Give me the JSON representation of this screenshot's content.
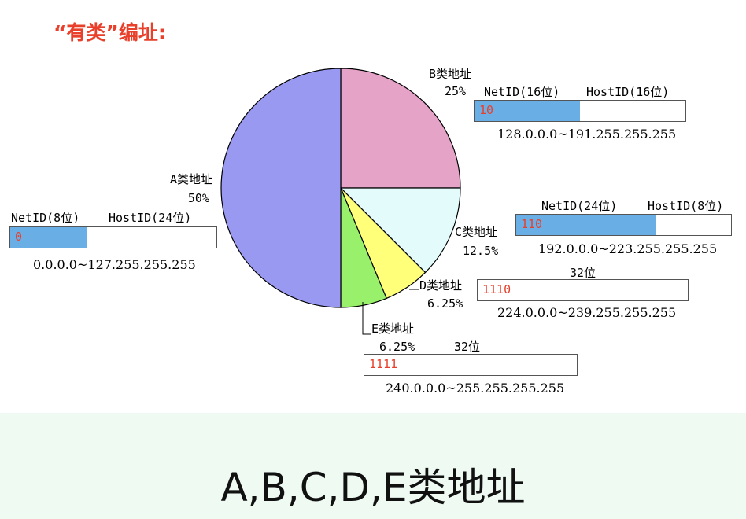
{
  "heading": "“有类”编址:",
  "caption": "A,B,C,D,E类地址",
  "chart_data": {
    "type": "pie",
    "slices": [
      {
        "label": "A类地址",
        "pct_label": "50%",
        "value": 50,
        "color": "#9999f2"
      },
      {
        "label": "B类地址",
        "pct_label": "25%",
        "value": 25,
        "color": "#e6a3c8"
      },
      {
        "label": "C类地址",
        "pct_label": "12.5%",
        "value": 12.5,
        "color": "#e3fbfb"
      },
      {
        "label": "D类地址",
        "pct_label": "6.25%",
        "value": 6.25,
        "color": "#ffff7a"
      },
      {
        "label": "E类地址",
        "pct_label": "6.25%",
        "value": 6.25,
        "color": "#99f06a"
      }
    ]
  },
  "classes": {
    "A": {
      "net": "NetID(8位)",
      "host": "HostID(24位)",
      "prefix": "0",
      "range": "0.0.0.0~127.255.255.255",
      "net_fraction": 0.37
    },
    "B": {
      "net": "NetID(16位)",
      "host": "HostID(16位)",
      "prefix": "10",
      "range": "128.0.0.0~191.255.255.255",
      "net_fraction": 0.5
    },
    "C": {
      "net": "NetID(24位)",
      "host": "HostID(8位)",
      "prefix": "110",
      "range": "192.0.0.0~223.255.255.255",
      "net_fraction": 0.65
    },
    "D": {
      "bits": "32位",
      "prefix": "1110",
      "range": "224.0.0.0~239.255.255.255"
    },
    "E": {
      "bits": "32位",
      "prefix": "1111",
      "range": "240.0.0.0~255.255.255.255"
    }
  }
}
